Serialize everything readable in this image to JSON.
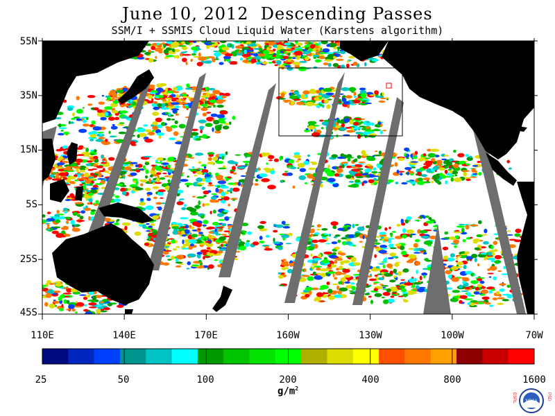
{
  "title": "June 10, 2012  Descending Passes",
  "subtitle": "SSM/I + SSMIS Cloud Liquid Water (Karstens algorithm)",
  "lat_labels": [
    "55N",
    "35N",
    "15N",
    "5S",
    "25S",
    "45S"
  ],
  "lon_labels": [
    "110E",
    "140E",
    "170E",
    "160W",
    "130W",
    "100W",
    "70W"
  ],
  "colorbar": {
    "colors": [
      "#000a80",
      "#0026c0",
      "#0040ff",
      "#00948e",
      "#00c4c4",
      "#00ffff",
      "#009a00",
      "#00c400",
      "#00e400",
      "#00ff00",
      "#b0b000",
      "#dcdc00",
      "#ffff00",
      "#ff5000",
      "#ff7800",
      "#ffa000",
      "#8c0000",
      "#c80000",
      "#ff0000"
    ],
    "tick_labels": [
      "25",
      "50",
      "100",
      "200",
      "400",
      "800",
      "1600"
    ],
    "units_text": "g/m",
    "units_sup": "2"
  },
  "logo": {
    "left_letters": "ESRL",
    "right_letters": "PSD",
    "center_text": "NOAA"
  },
  "colors": {
    "land": "#000000",
    "ocean": "#ffffff",
    "gap": "#6e6e6e",
    "box": "#000000",
    "marker": "#ff0000"
  }
}
